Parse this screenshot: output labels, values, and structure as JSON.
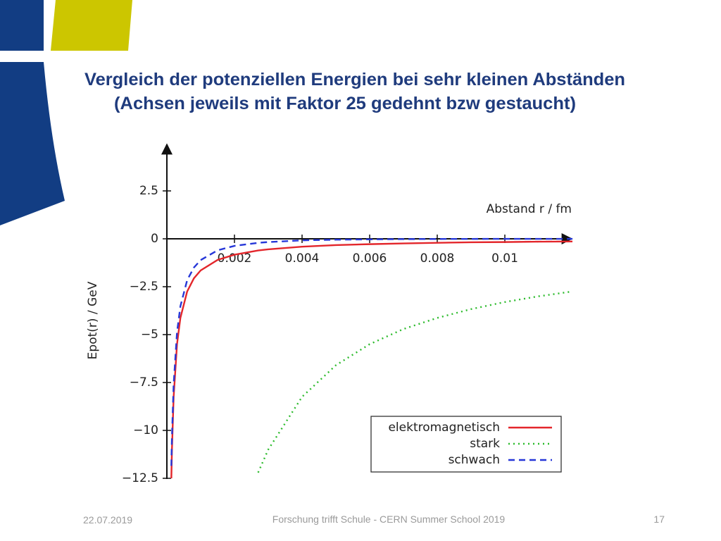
{
  "slide": {
    "title_lines": [
      "Vergleich der potenziellen Energien bei sehr kleinen Abständen",
      "(Achsen jeweils mit Faktor 25 gedehnt bzw gestaucht)"
    ],
    "footer": {
      "date": "22.07.2019",
      "center": "Forschung trifft Schule - CERN Summer School 2019",
      "page": "17"
    }
  },
  "chart_data": {
    "type": "line",
    "x_label": "Abstand r / fm",
    "y_label": "Epot(r) / GeV",
    "x": [
      0.000132,
      0.00015,
      0.0002,
      0.0003,
      0.0004,
      0.0006,
      0.0008,
      0.001,
      0.0015,
      0.002,
      0.0027,
      0.003,
      0.004,
      0.005,
      0.006,
      0.007,
      0.008,
      0.009,
      0.01,
      0.011,
      0.012
    ],
    "series": [
      {
        "name": "elektromagnetisch",
        "color": "#e3262b",
        "dash": "solid",
        "values": [
          -12.5,
          -11,
          -8.25,
          -5.5,
          -4.13,
          -2.75,
          -2.06,
          -1.65,
          -1.1,
          -0.83,
          -0.61,
          -0.55,
          -0.41,
          -0.33,
          -0.28,
          -0.24,
          -0.21,
          -0.18,
          -0.17,
          -0.15,
          -0.14
        ]
      },
      {
        "name": "stark",
        "color": "#2cbb2c",
        "dash": "dotted",
        "values": [
          null,
          null,
          null,
          null,
          null,
          null,
          null,
          null,
          null,
          null,
          -12.2,
          -11,
          -8.25,
          -6.6,
          -5.5,
          -4.71,
          -4.13,
          -3.67,
          -3.3,
          -3,
          -2.75
        ]
      },
      {
        "name": "schwach",
        "color": "#2637d8",
        "dash": "dashed",
        "values": [
          -11.85,
          -10.36,
          -7.61,
          -4.88,
          -3.52,
          -2.16,
          -1.5,
          -1.11,
          -0.6,
          -0.37,
          -0.21,
          -0.17,
          -0.08,
          -0.045,
          -0.03,
          -0.015,
          -0.01,
          -0.005,
          -0.003,
          -0.002,
          -0.001
        ]
      }
    ],
    "xlim": [
      0,
      0.012
    ],
    "ylim": [
      -12.5,
      5.1
    ],
    "xticks": [
      0.002,
      0.004,
      0.006,
      0.008,
      0.01
    ],
    "yticks": [
      2.5,
      0,
      {
        "value": -2.5,
        "label": "−2.5"
      },
      {
        "value": -5,
        "label": "−5"
      },
      {
        "value": -7.5,
        "label": "−7.5"
      },
      {
        "value": -10,
        "label": "−10"
      },
      {
        "value": -12.5,
        "label": "−12.5"
      }
    ],
    "legend": "lower right"
  }
}
